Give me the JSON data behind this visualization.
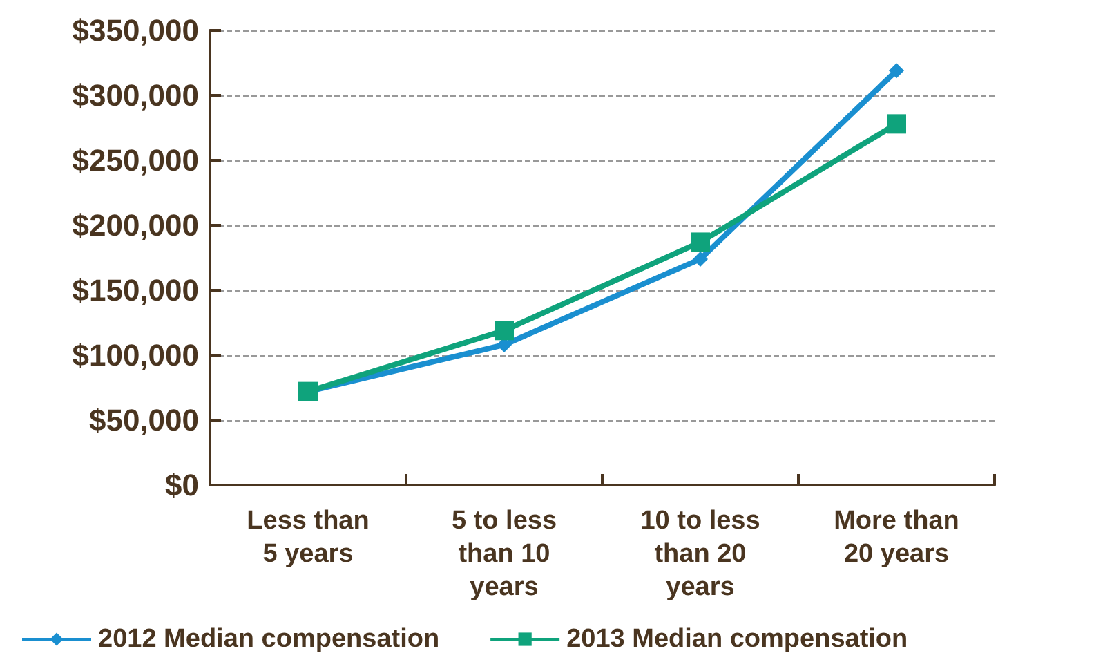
{
  "chart_data": {
    "type": "line",
    "categories": [
      "Less than\n5 years",
      "5 to less\nthan 10\nyears",
      "10 to less\nthan 20\nyears",
      "More than\n20 years"
    ],
    "series": [
      {
        "name": "2012 Median compensation",
        "color": "#1a8fd0",
        "marker": "diamond",
        "values": [
          72000,
          108000,
          174000,
          319000
        ]
      },
      {
        "name": "2013 Median compensation",
        "color": "#0fa37c",
        "marker": "square",
        "values": [
          72000,
          119000,
          187000,
          278000
        ]
      }
    ],
    "ylim": [
      0,
      350000
    ],
    "yticks": [
      {
        "value": 0,
        "label": "$0"
      },
      {
        "value": 50000,
        "label": "$50,000"
      },
      {
        "value": 100000,
        "label": "$100,000"
      },
      {
        "value": 150000,
        "label": "$150,000"
      },
      {
        "value": 200000,
        "label": "$200,000"
      },
      {
        "value": 250000,
        "label": "$250,000"
      },
      {
        "value": 300000,
        "label": "$300,000"
      },
      {
        "value": 350000,
        "label": "$350,000"
      }
    ],
    "grid": "y",
    "legend": "bottom",
    "line_style": "solid"
  }
}
